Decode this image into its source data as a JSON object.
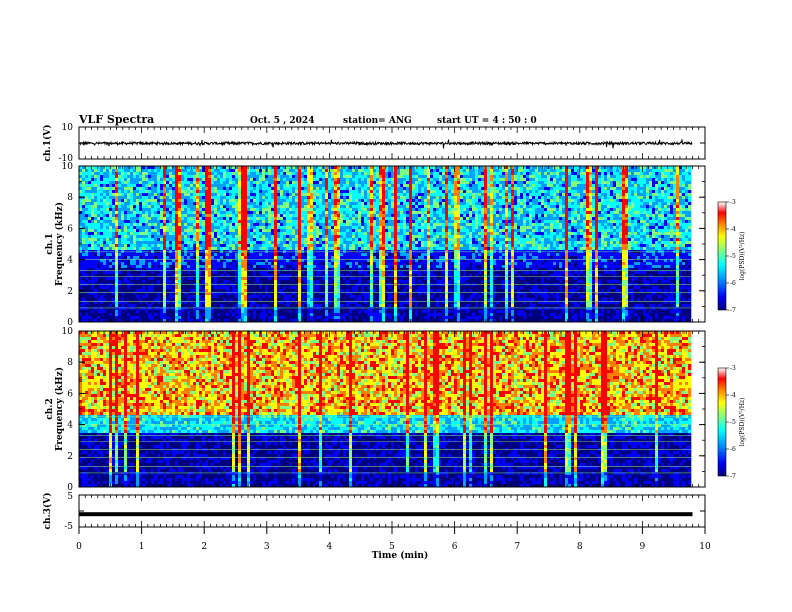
{
  "header": {
    "title": "VLF Spectra",
    "date": "Oct. 5 , 2024",
    "station": "station= ANG",
    "start": "start UT =  4 : 50 : 0"
  },
  "chart_data": [
    {
      "type": "line",
      "name": "ch1-waveform",
      "ylabel": "ch.1(V)",
      "ylim": [
        -10,
        10
      ],
      "ytick_labels": [
        "10",
        "-10"
      ],
      "x": [
        0,
        9.8
      ],
      "baseline": -0.2
    },
    {
      "type": "heatmap",
      "name": "ch1-spectrogram",
      "ylabel": "ch.1\nFrequency (kHz)",
      "ylim": [
        0,
        10
      ],
      "ytick_labels": [
        "0",
        "2",
        "4",
        "6",
        "8",
        "10"
      ],
      "x_range": [
        0,
        9.8
      ],
      "colorbar": {
        "label": "log(PSD)(V²/Hz)",
        "range": [
          -7,
          -3
        ],
        "tick_labels": [
          "-3",
          "-4",
          "-5",
          "-6",
          "-7"
        ]
      }
    },
    {
      "type": "heatmap",
      "name": "ch2-spectrogram",
      "ylabel": "ch.2\nFrequency (kHz)",
      "ylim": [
        0,
        10
      ],
      "ytick_labels": [
        "0",
        "2",
        "4",
        "6",
        "8",
        "10"
      ],
      "x_range": [
        0,
        9.8
      ],
      "colorbar": {
        "label": "log(PSD)(V²/Hz)",
        "range": [
          -7,
          -3
        ],
        "tick_labels": [
          "-3",
          "-4",
          "-5",
          "-6",
          "-7"
        ]
      }
    },
    {
      "type": "line",
      "name": "ch3-waveform",
      "ylabel": "ch.3(V)",
      "ylim": [
        -5,
        5
      ],
      "ytick_labels": [
        "5",
        "-5"
      ],
      "x": [
        0,
        9.8
      ],
      "baseline": -1.0
    }
  ],
  "xaxis": {
    "label": "Time (min)",
    "tick_labels": [
      "0",
      "1",
      "2",
      "3",
      "4",
      "5",
      "6",
      "7",
      "8",
      "9",
      "10"
    ],
    "range": [
      0,
      10
    ]
  },
  "colors": {
    "colormap": [
      "#000080",
      "#0000ff",
      "#00a0ff",
      "#00ffff",
      "#80ff80",
      "#ffff00",
      "#ff8000",
      "#ff0000",
      "#ffffff"
    ]
  }
}
